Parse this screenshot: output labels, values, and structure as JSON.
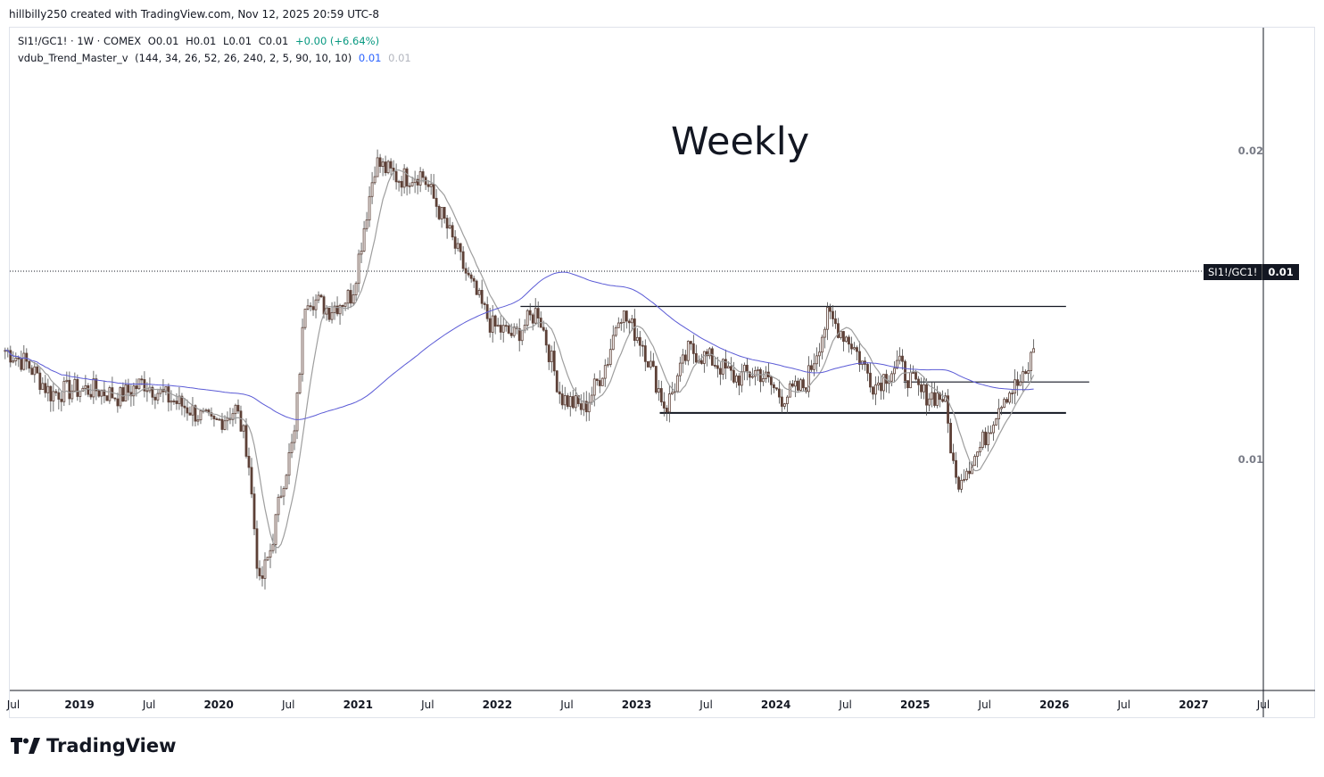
{
  "header": {
    "attribution": "hillbilly250 created with TradingView.com, Nov 12, 2025 20:59 UTC-8"
  },
  "legend": {
    "symbol_line": "SI1!/GC1! · 1W · COMEX",
    "open": "O0.01",
    "high": "H0.01",
    "low": "L0.01",
    "close": "C0.01",
    "change": "+0.00 (+6.64%)",
    "indicator_name": "vdub_Trend_Master_v",
    "indicator_params": "(144, 34, 26, 52, 26, 240, 2, 5, 90, 10, 10)",
    "indicator_value1": "0.01",
    "indicator_value2": "0.01"
  },
  "annotation": {
    "text": "Weekly"
  },
  "price_axis": {
    "labels": [
      "0.02",
      "0.01"
    ]
  },
  "price_tag": {
    "symbol": "SI1!/GC1!",
    "value": "0.01"
  },
  "colors": {
    "candle_down": "#5d4037",
    "candle_up": "#2e7d32",
    "wick": "#4a4a4a",
    "ma_fast": "#9e9e9e",
    "ma_slow": "#5b5bd6",
    "level_line": "#131722",
    "price_line": "#131722"
  },
  "brand": {
    "name": "TradingView"
  },
  "chart_data": {
    "type": "candlestick",
    "x_axis": {
      "labels": [
        {
          "text": "Jul",
          "year": false
        },
        {
          "text": "2019",
          "year": true
        },
        {
          "text": "Jul",
          "year": false
        },
        {
          "text": "2020",
          "year": true
        },
        {
          "text": "Jul",
          "year": false
        },
        {
          "text": "2021",
          "year": true
        },
        {
          "text": "Jul",
          "year": false
        },
        {
          "text": "2022",
          "year": true
        },
        {
          "text": "Jul",
          "year": false
        },
        {
          "text": "2023",
          "year": true
        },
        {
          "text": "Jul",
          "year": false
        },
        {
          "text": "2024",
          "year": true
        },
        {
          "text": "Jul",
          "year": false
        },
        {
          "text": "2025",
          "year": true
        },
        {
          "text": "Jul",
          "year": false
        },
        {
          "text": "2026",
          "year": true
        },
        {
          "text": "Jul",
          "year": false
        },
        {
          "text": "2027",
          "year": true
        },
        {
          "text": "Jul",
          "year": false
        }
      ],
      "range": [
        "2018-07",
        "2027-07"
      ]
    },
    "y_axis": {
      "scale": "log",
      "ticks": [
        0.02,
        0.01
      ]
    },
    "series_path": [
      [
        "2018-06",
        0.0128
      ],
      [
        "2018-08",
        0.0124
      ],
      [
        "2018-10",
        0.0116
      ],
      [
        "2018-12",
        0.0117
      ],
      [
        "2019-02",
        0.0117
      ],
      [
        "2019-04",
        0.0115
      ],
      [
        "2019-06",
        0.0119
      ],
      [
        "2019-08",
        0.0115
      ],
      [
        "2019-10",
        0.0112
      ],
      [
        "2019-12",
        0.0108
      ],
      [
        "2020-02",
        0.0112
      ],
      [
        "2020-03",
        0.0102
      ],
      [
        "2020-04",
        0.0075
      ],
      [
        "2020-05",
        0.0082
      ],
      [
        "2020-06",
        0.0095
      ],
      [
        "2020-07",
        0.0105
      ],
      [
        "2020-08",
        0.0145
      ],
      [
        "2020-10",
        0.014
      ],
      [
        "2020-12",
        0.0145
      ],
      [
        "2021-02",
        0.0195
      ],
      [
        "2021-04",
        0.0188
      ],
      [
        "2021-06",
        0.019
      ],
      [
        "2021-08",
        0.017
      ],
      [
        "2021-10",
        0.015
      ],
      [
        "2021-12",
        0.0135
      ],
      [
        "2022-02",
        0.0132
      ],
      [
        "2022-04",
        0.014
      ],
      [
        "2022-06",
        0.0115
      ],
      [
        "2022-08",
        0.0112
      ],
      [
        "2022-10",
        0.0125
      ],
      [
        "2022-11",
        0.014
      ],
      [
        "2023-01",
        0.013
      ],
      [
        "2023-03",
        0.0112
      ],
      [
        "2023-05",
        0.0128
      ],
      [
        "2023-07",
        0.0125
      ],
      [
        "2023-09",
        0.012
      ],
      [
        "2023-11",
        0.0122
      ],
      [
        "2024-01",
        0.0115
      ],
      [
        "2024-03",
        0.0118
      ],
      [
        "2024-05",
        0.0138
      ],
      [
        "2024-07",
        0.013
      ],
      [
        "2024-09",
        0.0118
      ],
      [
        "2024-11",
        0.0124
      ],
      [
        "2025-01",
        0.0116
      ],
      [
        "2025-03",
        0.0115
      ],
      [
        "2025-04",
        0.0095
      ],
      [
        "2025-06",
        0.0102
      ],
      [
        "2025-08",
        0.0115
      ],
      [
        "2025-10",
        0.012
      ],
      [
        "2025-11",
        0.0132
      ]
    ],
    "horizontal_levels": [
      {
        "from": "2022-03",
        "to": "2026-02",
        "value": 0.0141
      },
      {
        "from": "2024-12",
        "to": "2026-04",
        "value": 0.0119
      },
      {
        "from": "2023-03",
        "to": "2026-02",
        "value": 0.0111
      }
    ],
    "last_price": 0.01
  }
}
